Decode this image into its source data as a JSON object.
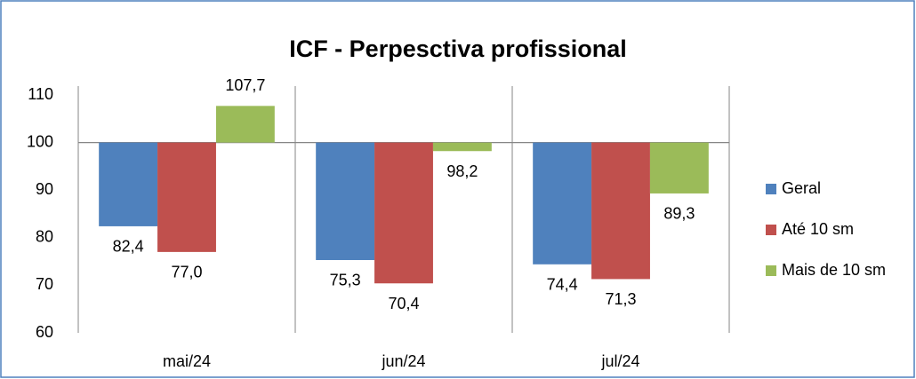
{
  "chart_data": {
    "type": "bar",
    "title": "ICF - Perpesctiva profissional",
    "categories": [
      "mai/24",
      "jun/24",
      "jul/24"
    ],
    "series": [
      {
        "name": "Geral",
        "color": "#4f81bd",
        "values": [
          82.4,
          75.3,
          74.4
        ],
        "value_labels": [
          "82,4",
          "75,3",
          "74,4"
        ]
      },
      {
        "name": "Até 10 sm",
        "color": "#c0504d",
        "values": [
          77.0,
          70.4,
          71.3
        ],
        "value_labels": [
          "77,0",
          "70,4",
          "71,3"
        ]
      },
      {
        "name": "Mais de 10 sm",
        "color": "#9bbb59",
        "values": [
          107.7,
          98.2,
          89.3
        ],
        "value_labels": [
          "107,7",
          "98,2",
          "89,3"
        ]
      }
    ],
    "ylim": [
      60,
      110
    ],
    "yticks": [
      60,
      70,
      80,
      90,
      100,
      110
    ],
    "baseline": 100,
    "legend": "right"
  }
}
